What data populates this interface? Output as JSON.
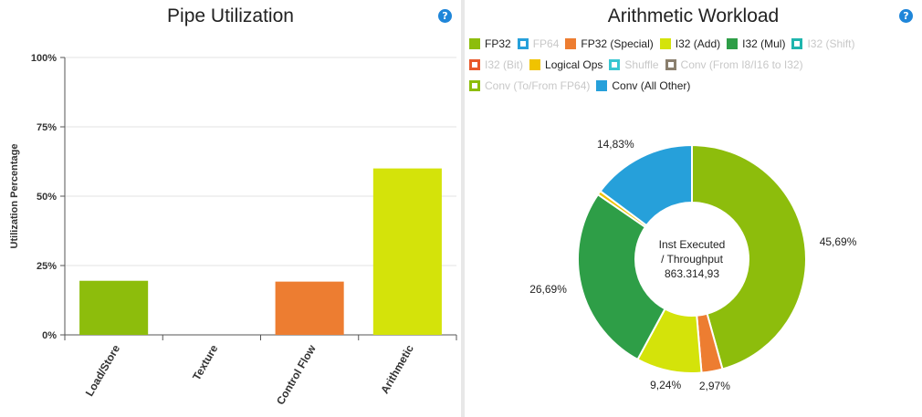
{
  "pipe_panel": {
    "title": "Pipe Utilization",
    "help_glyph": "?",
    "icon": "help-icon"
  },
  "arith_panel": {
    "title": "Arithmetic Workload",
    "help_glyph": "?",
    "icon": "help-icon",
    "center_lines": [
      "Inst Executed",
      "/ Throughput",
      "863.314,93"
    ]
  },
  "chart_data": [
    {
      "type": "bar",
      "title": "Pipe Utilization",
      "xlabel": "",
      "ylabel": "Utilization Percentage",
      "ylim": [
        0,
        100
      ],
      "yticks": [
        "0%",
        "25%",
        "50%",
        "75%",
        "100%"
      ],
      "categories": [
        "Load/Store",
        "Texture",
        "Control Flow",
        "Arithmetic"
      ],
      "values": [
        19.5,
        0,
        19.2,
        60
      ],
      "colors": [
        "#8dbd0c",
        "#8dbd0c",
        "#ed7d31",
        "#d4e30a"
      ],
      "grid": true
    },
    {
      "type": "pie",
      "title": "Arithmetic Workload",
      "legend": [
        {
          "name": "FP32",
          "color": "#8dbd0c",
          "visible": true
        },
        {
          "name": "FP64",
          "color": "#26a0da",
          "visible": false
        },
        {
          "name": "FP32 (Special)",
          "color": "#ed7d31",
          "visible": true
        },
        {
          "name": "I32 (Add)",
          "color": "#d4e30a",
          "visible": true
        },
        {
          "name": "I32 (Mul)",
          "color": "#2e9e47",
          "visible": true
        },
        {
          "name": "I32 (Shift)",
          "color": "#1fb5ad",
          "visible": false
        },
        {
          "name": "I32 (Bit)",
          "color": "#e8582a",
          "visible": false
        },
        {
          "name": "Logical Ops",
          "color": "#f0c300",
          "visible": true
        },
        {
          "name": "Shuffle",
          "color": "#38c6d1",
          "visible": false
        },
        {
          "name": "Conv (From I8/I16 to I32)",
          "color": "#8a7f6e",
          "visible": false
        },
        {
          "name": "Conv (To/From FP64)",
          "color": "#8dbd0c",
          "visible": false
        },
        {
          "name": "Conv (All Other)",
          "color": "#26a0da",
          "visible": true
        }
      ],
      "slices": [
        {
          "name": "FP32",
          "value": 45.69,
          "label": "45,69%",
          "color": "#8dbd0c"
        },
        {
          "name": "FP32 (Special)",
          "value": 2.97,
          "label": "2,97%",
          "color": "#ed7d31"
        },
        {
          "name": "I32 (Add)",
          "value": 9.24,
          "label": "9,24%",
          "color": "#d4e30a"
        },
        {
          "name": "I32 (Mul)",
          "value": 26.69,
          "label": "26,69%",
          "color": "#2e9e47"
        },
        {
          "name": "Logical Ops",
          "value": 0.58,
          "label": "",
          "color": "#f0c300"
        },
        {
          "name": "Conv (All Other)",
          "value": 14.83,
          "label": "14,83%",
          "color": "#26a0da"
        }
      ]
    }
  ]
}
